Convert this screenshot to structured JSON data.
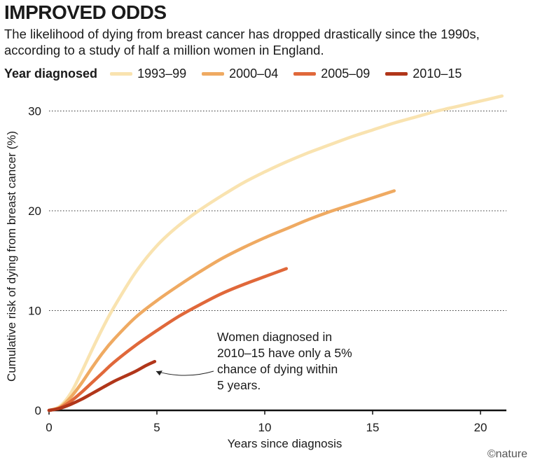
{
  "title": "IMPROVED ODDS",
  "subtitle": "The likelihood of dying from breast cancer has dropped drastically since the 1990s, according to a study of half a million women in England.",
  "legend": {
    "title": "Year diagnosed"
  },
  "credit": "©nature",
  "chart_data": {
    "type": "line",
    "xlabel": "Years since diagnosis",
    "ylabel": "Cumulative risk of dying from breast cancer (%)",
    "xlim": [
      0,
      21.2
    ],
    "ylim": [
      0,
      32
    ],
    "xticks": [
      0,
      5,
      10,
      15,
      20
    ],
    "yticks": [
      0,
      10,
      20,
      30
    ],
    "grid": "horizontal dotted",
    "legend_position": "top",
    "series": [
      {
        "name": "1993–99",
        "color": "#f9e3b0",
        "x": [
          0,
          0.5,
          1,
          1.5,
          2,
          2.5,
          3,
          4,
          5,
          6,
          7,
          8,
          9,
          10,
          11,
          12,
          13,
          14,
          15,
          16,
          17,
          18,
          19,
          20,
          21
        ],
        "y": [
          0,
          0.4,
          1.7,
          3.8,
          6.1,
          8.3,
          10.3,
          13.8,
          16.5,
          18.5,
          20.1,
          21.5,
          22.8,
          23.9,
          24.9,
          25.8,
          26.6,
          27.4,
          28.1,
          28.8,
          29.4,
          30.0,
          30.5,
          31.0,
          31.5
        ]
      },
      {
        "name": "2000–04",
        "color": "#efaa62",
        "x": [
          0,
          0.5,
          1,
          1.5,
          2,
          2.5,
          3,
          4,
          5,
          6,
          7,
          8,
          9,
          10,
          11,
          12,
          13,
          14,
          15,
          16
        ],
        "y": [
          0,
          0.3,
          1.3,
          2.7,
          4.3,
          5.8,
          7.1,
          9.3,
          11.0,
          12.5,
          13.9,
          15.2,
          16.3,
          17.3,
          18.2,
          19.1,
          19.9,
          20.6,
          21.3,
          22.0
        ]
      },
      {
        "name": "2005–09",
        "color": "#e0683a",
        "x": [
          0,
          0.5,
          1,
          1.5,
          2,
          2.5,
          3,
          4,
          5,
          6,
          7,
          8,
          9,
          10,
          11
        ],
        "y": [
          0,
          0.25,
          0.9,
          1.8,
          2.8,
          3.8,
          4.8,
          6.5,
          8.0,
          9.4,
          10.6,
          11.7,
          12.6,
          13.4,
          14.2
        ]
      },
      {
        "name": "2010–15",
        "color": "#b1361a",
        "x": [
          0,
          0.5,
          1,
          1.5,
          2,
          2.5,
          3,
          3.5,
          4,
          4.5,
          4.9
        ],
        "y": [
          0,
          0.2,
          0.6,
          1.1,
          1.7,
          2.3,
          2.9,
          3.4,
          3.9,
          4.5,
          4.9
        ]
      }
    ],
    "annotation": {
      "lines": [
        "Women diagnosed in",
        "2010–15 have only a 5%",
        "chance of dying within",
        "5 years."
      ]
    }
  }
}
